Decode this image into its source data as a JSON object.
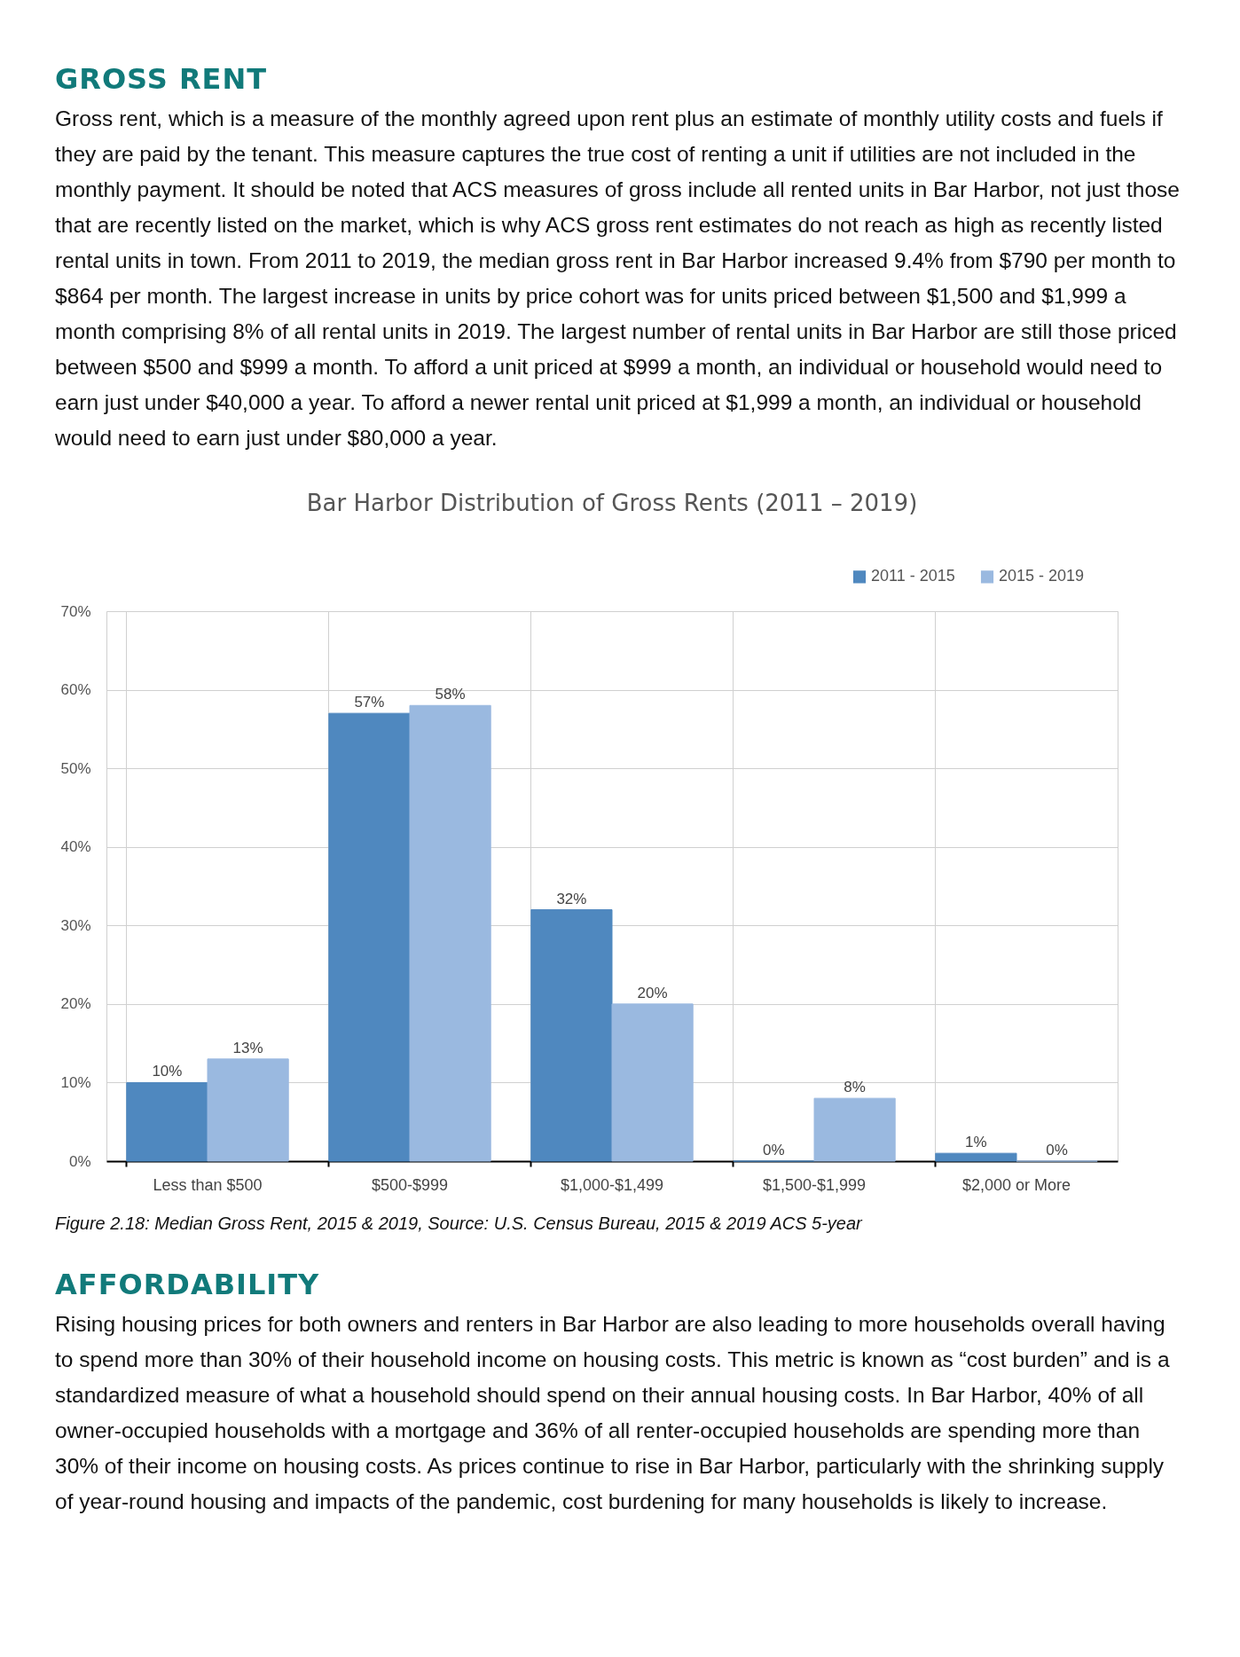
{
  "chart_data": {
    "type": "bar",
    "title": "Bar Harbor Distribution of Gross Rents (2011 – 2019)",
    "categories": [
      "Less than $500",
      "$500-$999",
      "$1,000-$1,499",
      "$1,500-$1,999",
      "$2,000 or More"
    ],
    "series": [
      {
        "name": "2011 - 2015",
        "color": "#4f88bf",
        "values": [
          10,
          57,
          32,
          0,
          1
        ],
        "value_labels": [
          "10%",
          "57%",
          "32%",
          "0%",
          "1%"
        ]
      },
      {
        "name": "2015 - 2019",
        "color": "#9ab9e0",
        "values": [
          13,
          58,
          20,
          8,
          0
        ],
        "value_labels": [
          "13%",
          "58%",
          "20%",
          "8%",
          "0%"
        ]
      }
    ],
    "ylim": [
      0,
      70
    ],
    "yticks": [
      {
        "value": 0,
        "label": "0%"
      },
      {
        "value": 10,
        "label": "10%"
      },
      {
        "value": 20,
        "label": "20%"
      },
      {
        "value": 30,
        "label": "30%"
      },
      {
        "value": 40,
        "label": "40%"
      },
      {
        "value": 50,
        "label": "50%"
      },
      {
        "value": 60,
        "label": "60%"
      },
      {
        "value": 70,
        "label": "70%"
      }
    ],
    "grid": true,
    "legend": "top right",
    "annotations": [
      "GROSS RENT",
      "Gross rent, which is a measure of the monthly agreed upon rent plus an estimate of monthly utility costs and fuels if they are paid by the tenant. This measure captures the true cost of renting a unit if utilities are not included in the monthly payment. It should be noted that ACS measures of gross include all rented units in Bar Harbor, not just those that are recently listed on the market, which is why ACS gross rent estimates do not reach as high as recently listed rental units in town. From 2011 to 2019, the median gross rent in Bar Harbor increased 9.4% from $790 per month to $864 per month. The largest increase in units by price cohort was for units priced between $1,500 and $1,999 a month comprising 8% of all rental units in 2019. The largest number of rental units in Bar Harbor are still those priced between $500 and $999 a month. To afford a unit priced at $999 a month, an individual or household would need to earn just under $40,000 a year. To afford a newer rental unit priced at $1,999 a month, an individual or household would need to earn just under $80,000 a year.",
      "Figure 2.18: Median Gross Rent, 2015 & 2019, Source: U.S. Census Bureau, 2015 & 2019 ACS 5-year",
      "AFFORDABILITY",
      "Rising housing prices for both owners and renters in Bar Harbor are also leading to more households overall having to spend more than 30% of their household income on housing costs. This metric is known as “cost burden” and is a standardized measure of what a household should spend on their annual housing costs. In Bar Harbor, 40% of all owner-occupied households with a mortgage and 36% of all renter-occupied households are spending more than 30% of their income on housing costs.  As prices continue to rise in Bar Harbor, particularly with the shrinking supply of year-round housing and impacts of the pandemic, cost burdening for many households is likely to increase."
    ]
  }
}
